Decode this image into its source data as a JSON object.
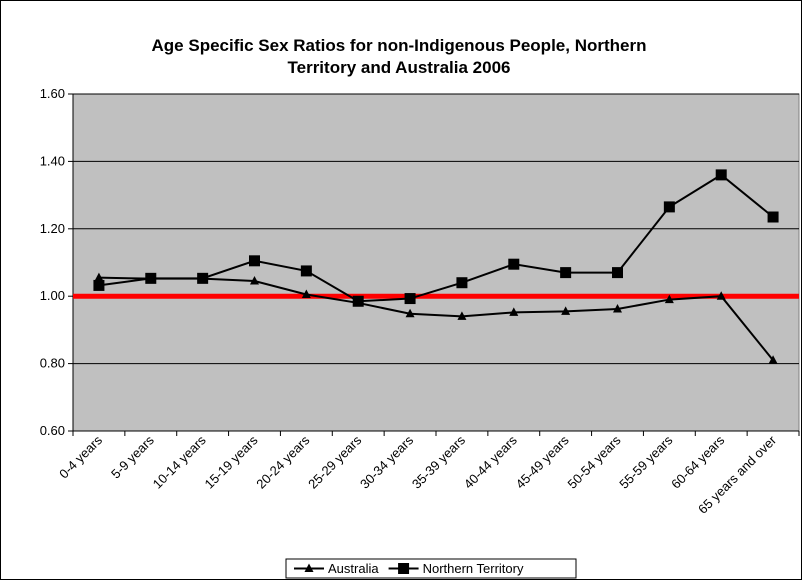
{
  "chart_data": {
    "type": "line",
    "title_lines": [
      "Age Specific Sex Ratios for non-Indigenous People, Northern",
      "Territory and Australia 2006"
    ],
    "categories": [
      "0-4 years",
      "5-9 years",
      "10-14 years",
      "15-19 years",
      "20-24 years",
      "25-29 years",
      "30-34 years",
      "35-39 years",
      "40-44 years",
      "45-49 years",
      "50-54 years",
      "55-59 years",
      "60-64 years",
      "65 years and over"
    ],
    "series": [
      {
        "name": "Australia",
        "marker": "triangle",
        "color": "#000000",
        "values": [
          1.055,
          1.052,
          1.052,
          1.045,
          1.005,
          0.98,
          0.948,
          0.94,
          0.952,
          0.955,
          0.962,
          0.99,
          1.0,
          0.81
        ]
      },
      {
        "name": "Northern Territory",
        "marker": "square",
        "color": "#000000",
        "values": [
          1.032,
          1.053,
          1.053,
          1.105,
          1.075,
          0.985,
          0.993,
          1.04,
          1.095,
          1.07,
          1.07,
          1.265,
          1.36,
          1.235
        ]
      }
    ],
    "reference_line": {
      "value": 1.0,
      "color": "#ff0000"
    },
    "ylim": [
      0.6,
      1.6
    ],
    "yticks": [
      "0.60",
      "0.80",
      "1.00",
      "1.20",
      "1.40",
      "1.60"
    ],
    "grid": true,
    "plot_background": "#c0c0c0",
    "legend_position": "bottom-center"
  }
}
